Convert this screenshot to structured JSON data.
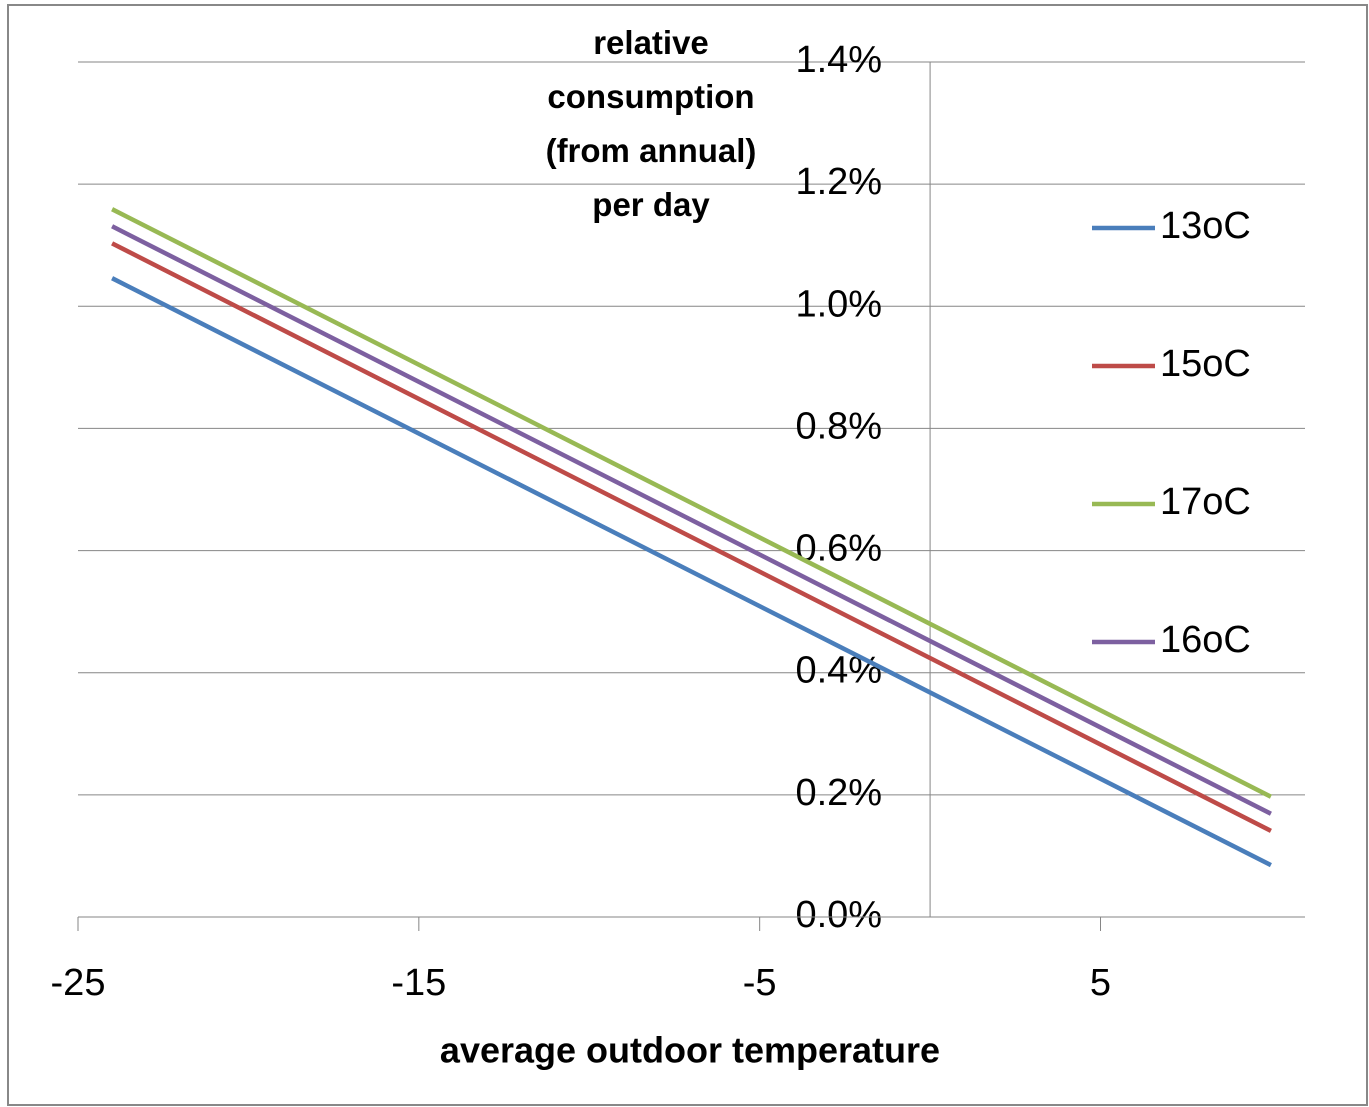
{
  "chart_data": {
    "type": "line",
    "x_label": "average outdoor temperature",
    "y_label": "relative consumption (from annual) per day",
    "x": [
      -24,
      10
    ],
    "series": [
      {
        "name": "13oC",
        "color": "#4a7ebb",
        "values": [
          1.046,
          0.085
        ]
      },
      {
        "name": "15oC",
        "color": "#be4b48",
        "values": [
          1.103,
          0.141
        ]
      },
      {
        "name": "17oC",
        "color": "#98b954",
        "values": [
          1.159,
          0.197
        ]
      },
      {
        "name": "16oC",
        "color": "#7d60a0",
        "values": [
          1.131,
          0.169
        ]
      }
    ],
    "xlim": [
      -25,
      11
    ],
    "xticks": [
      -25,
      -15,
      -5,
      5
    ],
    "ylim": [
      0,
      1.4
    ],
    "yticks": [
      {
        "value": 0,
        "label": "0.0%"
      },
      {
        "value": 0.2,
        "label": "0.2%"
      },
      {
        "value": 0.4,
        "label": "0.4%"
      },
      {
        "value": 0.6,
        "label": "0.6%"
      },
      {
        "value": 0.8,
        "label": "0.8%"
      },
      {
        "value": 1.0,
        "label": "1.0%"
      },
      {
        "value": 1.2,
        "label": "1.2%"
      },
      {
        "value": 1.4,
        "label": "1.4%"
      }
    ],
    "y_axis_at_x": 0,
    "grid": true,
    "legend": "right"
  }
}
